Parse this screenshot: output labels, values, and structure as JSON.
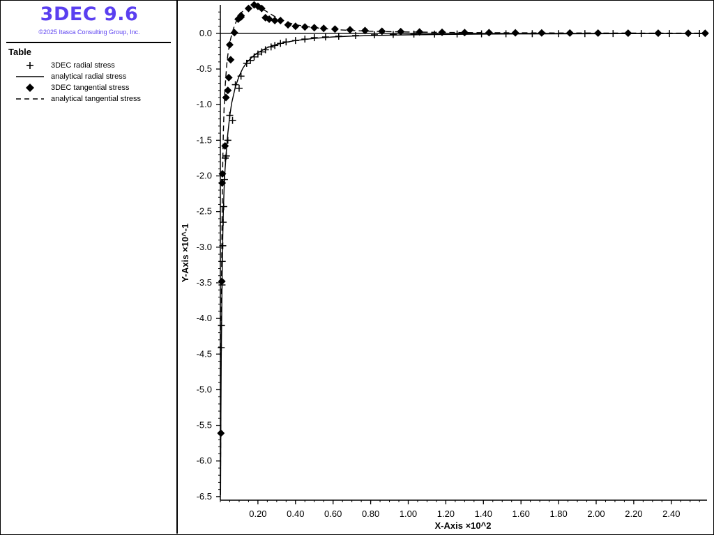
{
  "app": {
    "title": "3DEC 9.6",
    "copyright": "©2025 Itasca Consulting Group, Inc."
  },
  "legend": {
    "heading": "Table",
    "items": [
      {
        "label": "3DEC radial stress",
        "symbol": "plus"
      },
      {
        "label": "analytical radial stress",
        "symbol": "solid-line"
      },
      {
        "label": "3DEC tangential stress",
        "symbol": "diamond"
      },
      {
        "label": "analytical tangential stress",
        "symbol": "dashed-line"
      }
    ]
  },
  "chart_data": {
    "type": "line",
    "xlabel": "X-Axis ×10^2",
    "ylabel": "Y-Axis ×10^-1",
    "xlim": [
      0.0,
      2.59
    ],
    "ylim": [
      -6.55,
      0.4
    ],
    "xticks": [
      "0.20",
      "0.40",
      "0.60",
      "0.80",
      "1.00",
      "1.20",
      "1.40",
      "1.60",
      "1.80",
      "2.00",
      "2.20",
      "2.40"
    ],
    "yticks": [
      "0.0",
      "-0.5",
      "-1.0",
      "-1.5",
      "-2.0",
      "-2.5",
      "-3.0",
      "-3.5",
      "-4.0",
      "-4.5",
      "-5.0",
      "-5.5",
      "-6.0",
      "-6.5"
    ],
    "zero_line": true,
    "grid": false,
    "series": [
      {
        "name": "3DEC radial stress",
        "marker": "plus",
        "x": [
          0.005,
          0.006,
          0.009,
          0.01,
          0.013,
          0.015,
          0.018,
          0.022,
          0.026,
          0.032,
          0.04,
          0.05,
          0.065,
          0.08,
          0.1,
          0.11,
          0.14,
          0.16,
          0.18,
          0.2,
          0.22,
          0.24,
          0.27,
          0.29,
          0.32,
          0.35,
          0.4,
          0.45,
          0.5,
          0.56,
          0.63,
          0.72,
          0.82,
          0.92,
          1.03,
          1.14,
          1.26,
          1.39,
          1.52,
          1.66,
          1.8,
          1.94,
          2.09,
          2.24,
          2.39,
          2.55
        ],
        "y": [
          -4.41,
          -4.1,
          -3.53,
          -3.2,
          -2.98,
          -2.65,
          -2.43,
          -2.05,
          -1.75,
          -1.72,
          -1.5,
          -1.15,
          -1.22,
          -0.72,
          -0.77,
          -0.6,
          -0.42,
          -0.38,
          -0.33,
          -0.29,
          -0.26,
          -0.23,
          -0.19,
          -0.17,
          -0.14,
          -0.12,
          -0.1,
          -0.08,
          -0.06,
          -0.05,
          -0.04,
          -0.03,
          -0.02,
          -0.015,
          -0.01,
          -0.01,
          -0.008,
          -0.006,
          -0.005,
          -0.004,
          -0.003,
          -0.003,
          -0.002,
          -0.002,
          -0.002,
          -0.001
        ]
      },
      {
        "name": "analytical radial stress",
        "line": "solid",
        "x": [
          0.001,
          0.003,
          0.005,
          0.008,
          0.01,
          0.013,
          0.016,
          0.02,
          0.025,
          0.03,
          0.035,
          0.04,
          0.05,
          0.06,
          0.08,
          0.1,
          0.12,
          0.14,
          0.17,
          0.2,
          0.25,
          0.3,
          0.35,
          0.4,
          0.5,
          0.6,
          0.7,
          0.8,
          1.0,
          1.2,
          1.4,
          1.6,
          1.8,
          2.0,
          2.2,
          2.4,
          2.58
        ],
        "y": [
          -6.48,
          -5.35,
          -4.55,
          -3.75,
          -3.35,
          -2.85,
          -2.5,
          -2.18,
          -1.92,
          -1.72,
          -1.55,
          -1.4,
          -1.16,
          -0.98,
          -0.75,
          -0.6,
          -0.49,
          -0.41,
          -0.33,
          -0.27,
          -0.2,
          -0.155,
          -0.125,
          -0.1,
          -0.07,
          -0.05,
          -0.038,
          -0.03,
          -0.02,
          -0.014,
          -0.01,
          -0.008,
          -0.006,
          -0.005,
          -0.004,
          -0.003,
          -0.003
        ]
      },
      {
        "name": "3DEC tangential stress",
        "marker": "diamond",
        "x": [
          0.003,
          0.008,
          0.01,
          0.011,
          0.025,
          0.03,
          0.04,
          0.045,
          0.05,
          0.055,
          0.075,
          0.095,
          0.11,
          0.11,
          0.15,
          0.18,
          0.2,
          0.22,
          0.24,
          0.26,
          0.29,
          0.32,
          0.36,
          0.4,
          0.45,
          0.5,
          0.55,
          0.61,
          0.69,
          0.77,
          0.86,
          0.96,
          1.06,
          1.18,
          1.3,
          1.43,
          1.57,
          1.71,
          1.86,
          2.01,
          2.17,
          2.33,
          2.49,
          2.58
        ],
        "y": [
          -5.61,
          -3.48,
          -2.1,
          -1.97,
          -1.58,
          -0.9,
          -0.8,
          -0.62,
          -0.16,
          -0.37,
          0.01,
          0.2,
          0.23,
          0.25,
          0.35,
          0.4,
          0.38,
          0.35,
          0.22,
          0.2,
          0.18,
          0.18,
          0.12,
          0.1,
          0.09,
          0.08,
          0.07,
          0.06,
          0.05,
          0.04,
          0.03,
          0.025,
          0.02,
          0.015,
          0.012,
          0.01,
          0.008,
          0.006,
          0.005,
          0.004,
          0.003,
          0.003,
          0.002,
          0.002
        ]
      },
      {
        "name": "analytical tangential stress",
        "line": "dashed",
        "x": [
          0.001,
          0.003,
          0.005,
          0.008,
          0.01,
          0.013,
          0.016,
          0.02,
          0.025,
          0.03,
          0.035,
          0.04,
          0.05,
          0.06,
          0.07,
          0.08,
          0.09,
          0.1,
          0.11,
          0.12,
          0.14,
          0.16,
          0.18,
          0.2,
          0.22,
          0.25,
          0.3,
          0.35,
          0.4,
          0.5,
          0.6,
          0.7,
          0.8,
          1.0,
          1.2,
          1.4,
          1.6,
          1.8,
          2.0,
          2.2,
          2.4,
          2.58
        ],
        "y": [
          -6.2,
          -4.9,
          -3.9,
          -2.9,
          -2.4,
          -1.8,
          -1.4,
          -1.05,
          -0.78,
          -0.58,
          -0.42,
          -0.3,
          -0.13,
          -0.02,
          0.07,
          0.14,
          0.2,
          0.25,
          0.29,
          0.31,
          0.34,
          0.36,
          0.37,
          0.37,
          0.35,
          0.3,
          0.22,
          0.16,
          0.12,
          0.08,
          0.055,
          0.04,
          0.03,
          0.02,
          0.014,
          0.01,
          0.008,
          0.006,
          0.005,
          0.004,
          0.003,
          0.003
        ]
      }
    ]
  }
}
